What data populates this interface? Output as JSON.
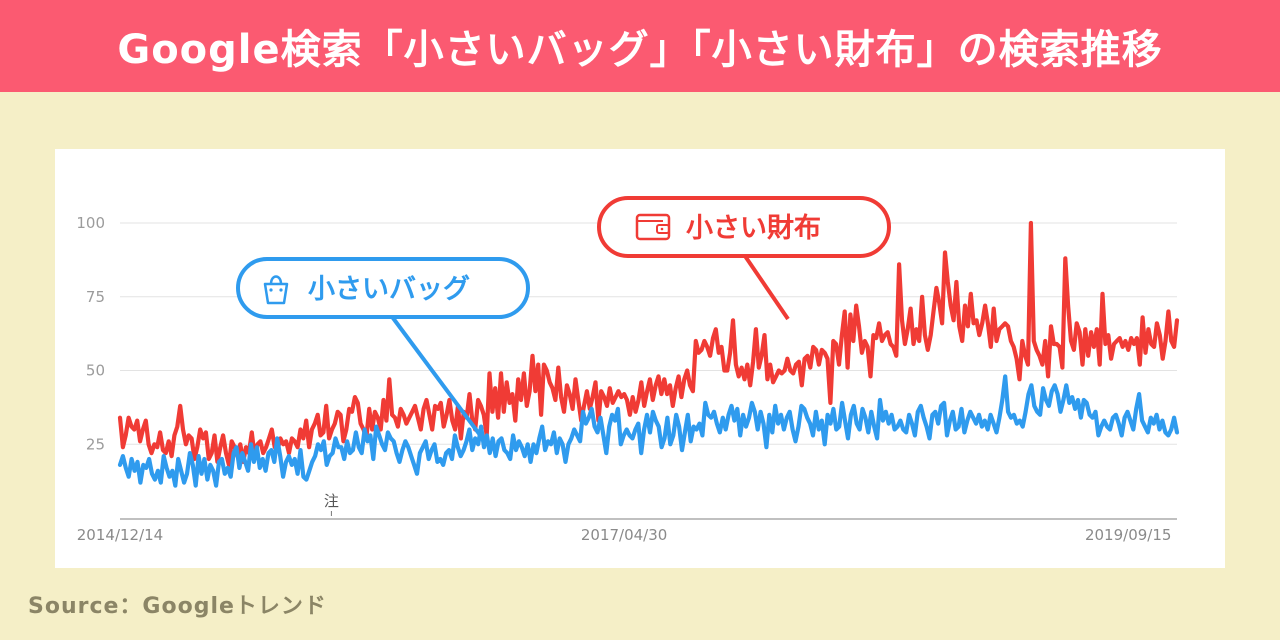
{
  "banner": {
    "title": "Google検索「小さいバッグ」「小さい財布」の検索推移"
  },
  "source": "Source：Googleトレンド",
  "colors": {
    "bag": "#2f9bee",
    "wallet": "#f03b35",
    "banner": "#fb5a71",
    "background": "#f5efc7"
  },
  "callouts": {
    "bag": {
      "label": "小さいバッグ",
      "icon": "bag-icon"
    },
    "wallet": {
      "label": "小さい財布",
      "icon": "wallet-icon"
    }
  },
  "chart_data": {
    "type": "line",
    "title": "",
    "xlabel": "",
    "ylabel": "",
    "ylim": [
      0,
      100
    ],
    "yticks": [
      25,
      50,
      75,
      100
    ],
    "xticks": [
      "2014/12/14",
      "2017/04/30",
      "2019/09/15"
    ],
    "x_start": "2014/12/14",
    "x_end": "2019/12/08",
    "grid": true,
    "annotation": "注",
    "annotation_x": "2015/12/13",
    "series": [
      {
        "name": "小さい財布",
        "color": "#f03b35",
        "values": [
          34,
          24,
          28,
          34,
          31,
          30,
          33,
          26,
          30,
          33,
          25,
          22,
          25,
          24,
          29,
          23,
          22,
          26,
          21,
          28,
          31,
          38,
          30,
          25,
          28,
          27,
          20,
          24,
          30,
          27,
          29,
          20,
          22,
          28,
          19,
          24,
          28,
          22,
          18,
          26,
          24,
          21,
          25,
          19,
          24,
          22,
          29,
          21,
          25,
          26,
          22,
          24,
          27,
          30,
          24,
          23,
          27,
          25,
          26,
          22,
          27,
          26,
          24,
          30,
          27,
          33,
          24,
          30,
          32,
          35,
          28,
          29,
          38,
          27,
          30,
          32,
          36,
          35,
          26,
          30,
          37,
          36,
          41,
          39,
          32,
          30,
          27,
          37,
          30,
          36,
          34,
          30,
          40,
          33,
          47,
          35,
          34,
          31,
          37,
          35,
          32,
          34,
          36,
          38,
          34,
          30,
          37,
          40,
          35,
          30,
          38,
          37,
          39,
          31,
          35,
          40,
          33,
          30,
          38,
          27,
          36,
          34,
          42,
          33,
          30,
          40,
          38,
          35,
          28,
          49,
          36,
          44,
          34,
          49,
          36,
          46,
          39,
          42,
          33,
          47,
          40,
          49,
          38,
          43,
          55,
          43,
          52,
          35,
          52,
          50,
          46,
          44,
          40,
          51,
          41,
          36,
          45,
          42,
          37,
          47,
          40,
          33,
          38,
          43,
          37,
          41,
          46,
          33,
          43,
          41,
          38,
          44,
          39,
          41,
          43,
          41,
          42,
          40,
          35,
          41,
          36,
          40,
          46,
          38,
          43,
          47,
          40,
          45,
          48,
          42,
          47,
          42,
          45,
          38,
          44,
          48,
          41,
          47,
          50,
          45,
          43,
          60,
          56,
          57,
          60,
          58,
          55,
          61,
          64,
          56,
          58,
          50,
          50,
          56,
          67,
          52,
          48,
          51,
          47,
          52,
          45,
          53,
          64,
          51,
          55,
          62,
          47,
          52,
          46,
          48,
          50,
          49,
          50,
          54,
          50,
          49,
          52,
          53,
          45,
          54,
          55,
          51,
          58,
          57,
          52,
          57,
          56,
          54,
          39,
          60,
          59,
          52,
          62,
          70,
          51,
          69,
          60,
          72,
          65,
          56,
          60,
          58,
          48,
          62,
          61,
          66,
          60,
          62,
          63,
          59,
          58,
          55,
          86,
          67,
          59,
          64,
          71,
          59,
          64,
          60,
          75,
          62,
          57,
          62,
          70,
          78,
          73,
          66,
          90,
          80,
          72,
          67,
          80,
          65,
          60,
          72,
          65,
          76,
          66,
          67,
          62,
          66,
          72,
          66,
          58,
          71,
          60,
          64,
          65,
          66,
          65,
          60,
          58,
          54,
          47,
          60,
          55,
          52,
          100,
          60,
          57,
          55,
          52,
          60,
          48,
          65,
          59,
          59,
          58,
          51,
          88,
          72,
          60,
          57,
          66,
          63,
          52,
          64,
          55,
          63,
          58,
          64,
          52,
          76,
          59,
          62,
          54,
          59,
          60,
          61,
          58,
          60,
          57,
          61,
          59,
          61,
          52,
          68,
          56,
          64,
          59,
          58,
          66,
          62,
          54,
          60,
          70,
          60,
          58,
          67
        ]
      },
      {
        "name": "小さいバッグ",
        "color": "#2f9bee",
        "values": [
          18,
          21,
          17,
          14,
          20,
          16,
          19,
          12,
          18,
          17,
          20,
          15,
          13,
          16,
          12,
          21,
          17,
          14,
          16,
          11,
          20,
          16,
          12,
          15,
          22,
          18,
          11,
          21,
          15,
          20,
          13,
          18,
          16,
          11,
          19,
          20,
          15,
          17,
          14,
          22,
          24,
          17,
          22,
          19,
          16,
          25,
          19,
          24,
          17,
          20,
          16,
          22,
          23,
          19,
          27,
          21,
          14,
          19,
          21,
          18,
          20,
          15,
          23,
          14,
          13,
          16,
          19,
          21,
          25,
          23,
          26,
          18,
          21,
          22,
          27,
          24,
          24,
          20,
          26,
          22,
          23,
          29,
          24,
          22,
          30,
          26,
          28,
          20,
          31,
          28,
          25,
          23,
          29,
          27,
          26,
          22,
          19,
          23,
          26,
          24,
          21,
          18,
          15,
          22,
          24,
          26,
          20,
          23,
          25,
          19,
          20,
          18,
          22,
          23,
          20,
          28,
          24,
          21,
          23,
          26,
          30,
          23,
          27,
          25,
          31,
          24,
          28,
          22,
          27,
          21,
          26,
          27,
          23,
          22,
          20,
          28,
          23,
          26,
          24,
          21,
          25,
          19,
          25,
          22,
          27,
          31,
          23,
          26,
          25,
          29,
          22,
          27,
          25,
          19,
          25,
          27,
          30,
          28,
          26,
          36,
          32,
          34,
          37,
          31,
          29,
          34,
          28,
          22,
          31,
          35,
          33,
          37,
          25,
          28,
          30,
          28,
          27,
          30,
          32,
          22,
          30,
          35,
          29,
          36,
          33,
          31,
          24,
          27,
          34,
          25,
          28,
          35,
          31,
          23,
          29,
          35,
          26,
          31,
          30,
          32,
          28,
          39,
          35,
          34,
          36,
          32,
          29,
          34,
          30,
          35,
          38,
          33,
          37,
          28,
          35,
          31,
          34,
          39,
          36,
          30,
          36,
          32,
          24,
          35,
          29,
          38,
          32,
          35,
          30,
          34,
          36,
          30,
          26,
          31,
          38,
          37,
          34,
          32,
          28,
          36,
          30,
          33,
          25,
          35,
          32,
          37,
          30,
          31,
          39,
          33,
          27,
          35,
          38,
          32,
          30,
          37,
          34,
          29,
          36,
          31,
          27,
          40,
          33,
          36,
          32,
          35,
          30,
          31,
          33,
          30,
          29,
          35,
          32,
          28,
          36,
          38,
          34,
          31,
          27,
          35,
          36,
          32,
          38,
          39,
          28,
          33,
          36,
          30,
          31,
          37,
          29,
          33,
          36,
          34,
          32,
          35,
          31,
          33,
          30,
          35,
          32,
          29,
          34,
          40,
          48,
          36,
          34,
          35,
          32,
          33,
          31,
          36,
          42,
          45,
          38,
          36,
          35,
          44,
          40,
          38,
          43,
          45,
          42,
          36,
          40,
          45,
          39,
          41,
          37,
          40,
          34,
          40,
          39,
          35,
          34,
          36,
          28,
          31,
          33,
          31,
          30,
          34,
          35,
          32,
          28,
          34,
          36,
          33,
          30,
          37,
          42,
          33,
          31,
          29,
          34,
          32,
          35,
          30,
          33,
          29,
          28,
          30,
          34,
          29
        ]
      }
    ]
  }
}
